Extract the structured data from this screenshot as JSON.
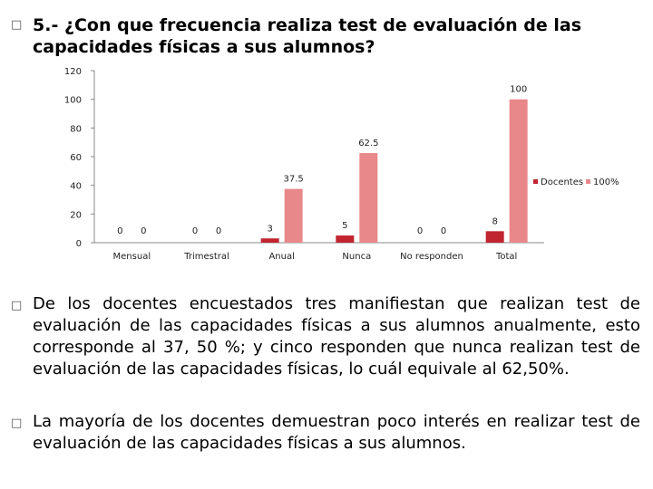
{
  "bullet_glyph": "□",
  "heading": "5.- ¿Con que frecuencia realiza test de evaluación de las capacidades físicas a sus alumnos?",
  "paragraphs": [
    "De los docentes encuestados tres manifiestan que realizan test de evaluación de las capacidades físicas a sus alumnos anualmente, esto corresponde al 37, 50 %; y cinco responden que nunca realizan test de evaluación de las capacidades físicas, lo cuál equivale al  62,50%.",
    "La mayoría de los docentes demuestran poco interés en realizar test de evaluación de las capacidades físicas a sus alumnos."
  ],
  "colors": {
    "docentes": "#c0242f",
    "pct": "#e8888a",
    "axis": "#888888",
    "bullet": "#555555"
  },
  "chart_data": {
    "type": "bar",
    "categories": [
      "Mensual",
      "Trimestral",
      "Anual",
      "Nunca",
      "No responden",
      "Total"
    ],
    "series": [
      {
        "name": "Docentes",
        "values": [
          0,
          0,
          3,
          5,
          0,
          8
        ],
        "labels": [
          "0",
          "0",
          "3",
          "5",
          "0",
          "8"
        ]
      },
      {
        "name": "100%",
        "values": [
          0,
          0,
          37.5,
          62.5,
          0,
          100
        ],
        "labels": [
          "0",
          "0",
          "37.5",
          "62.5",
          "0",
          "100"
        ]
      }
    ],
    "yticks": [
      "0",
      "20",
      "40",
      "60",
      "80",
      "100",
      "120"
    ],
    "ylim": [
      0,
      120
    ],
    "grid": false,
    "legend_position": "right"
  }
}
